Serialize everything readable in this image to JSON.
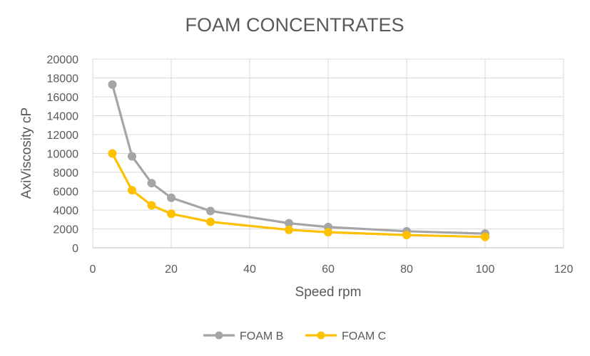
{
  "chart_data": {
    "type": "line",
    "title": "FOAM CONCENTRATES",
    "xlabel": "Speed rpm",
    "ylabel": "AxiViscosity cP",
    "xlim": [
      0,
      120
    ],
    "ylim": [
      0,
      20000
    ],
    "xticks": [
      0,
      20,
      40,
      60,
      80,
      100,
      120
    ],
    "yticks": [
      0,
      2000,
      4000,
      6000,
      8000,
      10000,
      12000,
      14000,
      16000,
      18000,
      20000
    ],
    "grid": true,
    "legend": "bottom",
    "x": [
      5,
      10,
      15,
      20,
      30,
      50,
      60,
      80,
      100
    ],
    "series": [
      {
        "name": "FOAM B",
        "color": "#a5a5a5",
        "values": [
          17300,
          9700,
          6850,
          5300,
          3900,
          2600,
          2200,
          1750,
          1500
        ]
      },
      {
        "name": "FOAM C",
        "color": "#ffc000",
        "values": [
          10000,
          6100,
          4500,
          3600,
          2750,
          1900,
          1650,
          1350,
          1150
        ]
      }
    ]
  }
}
